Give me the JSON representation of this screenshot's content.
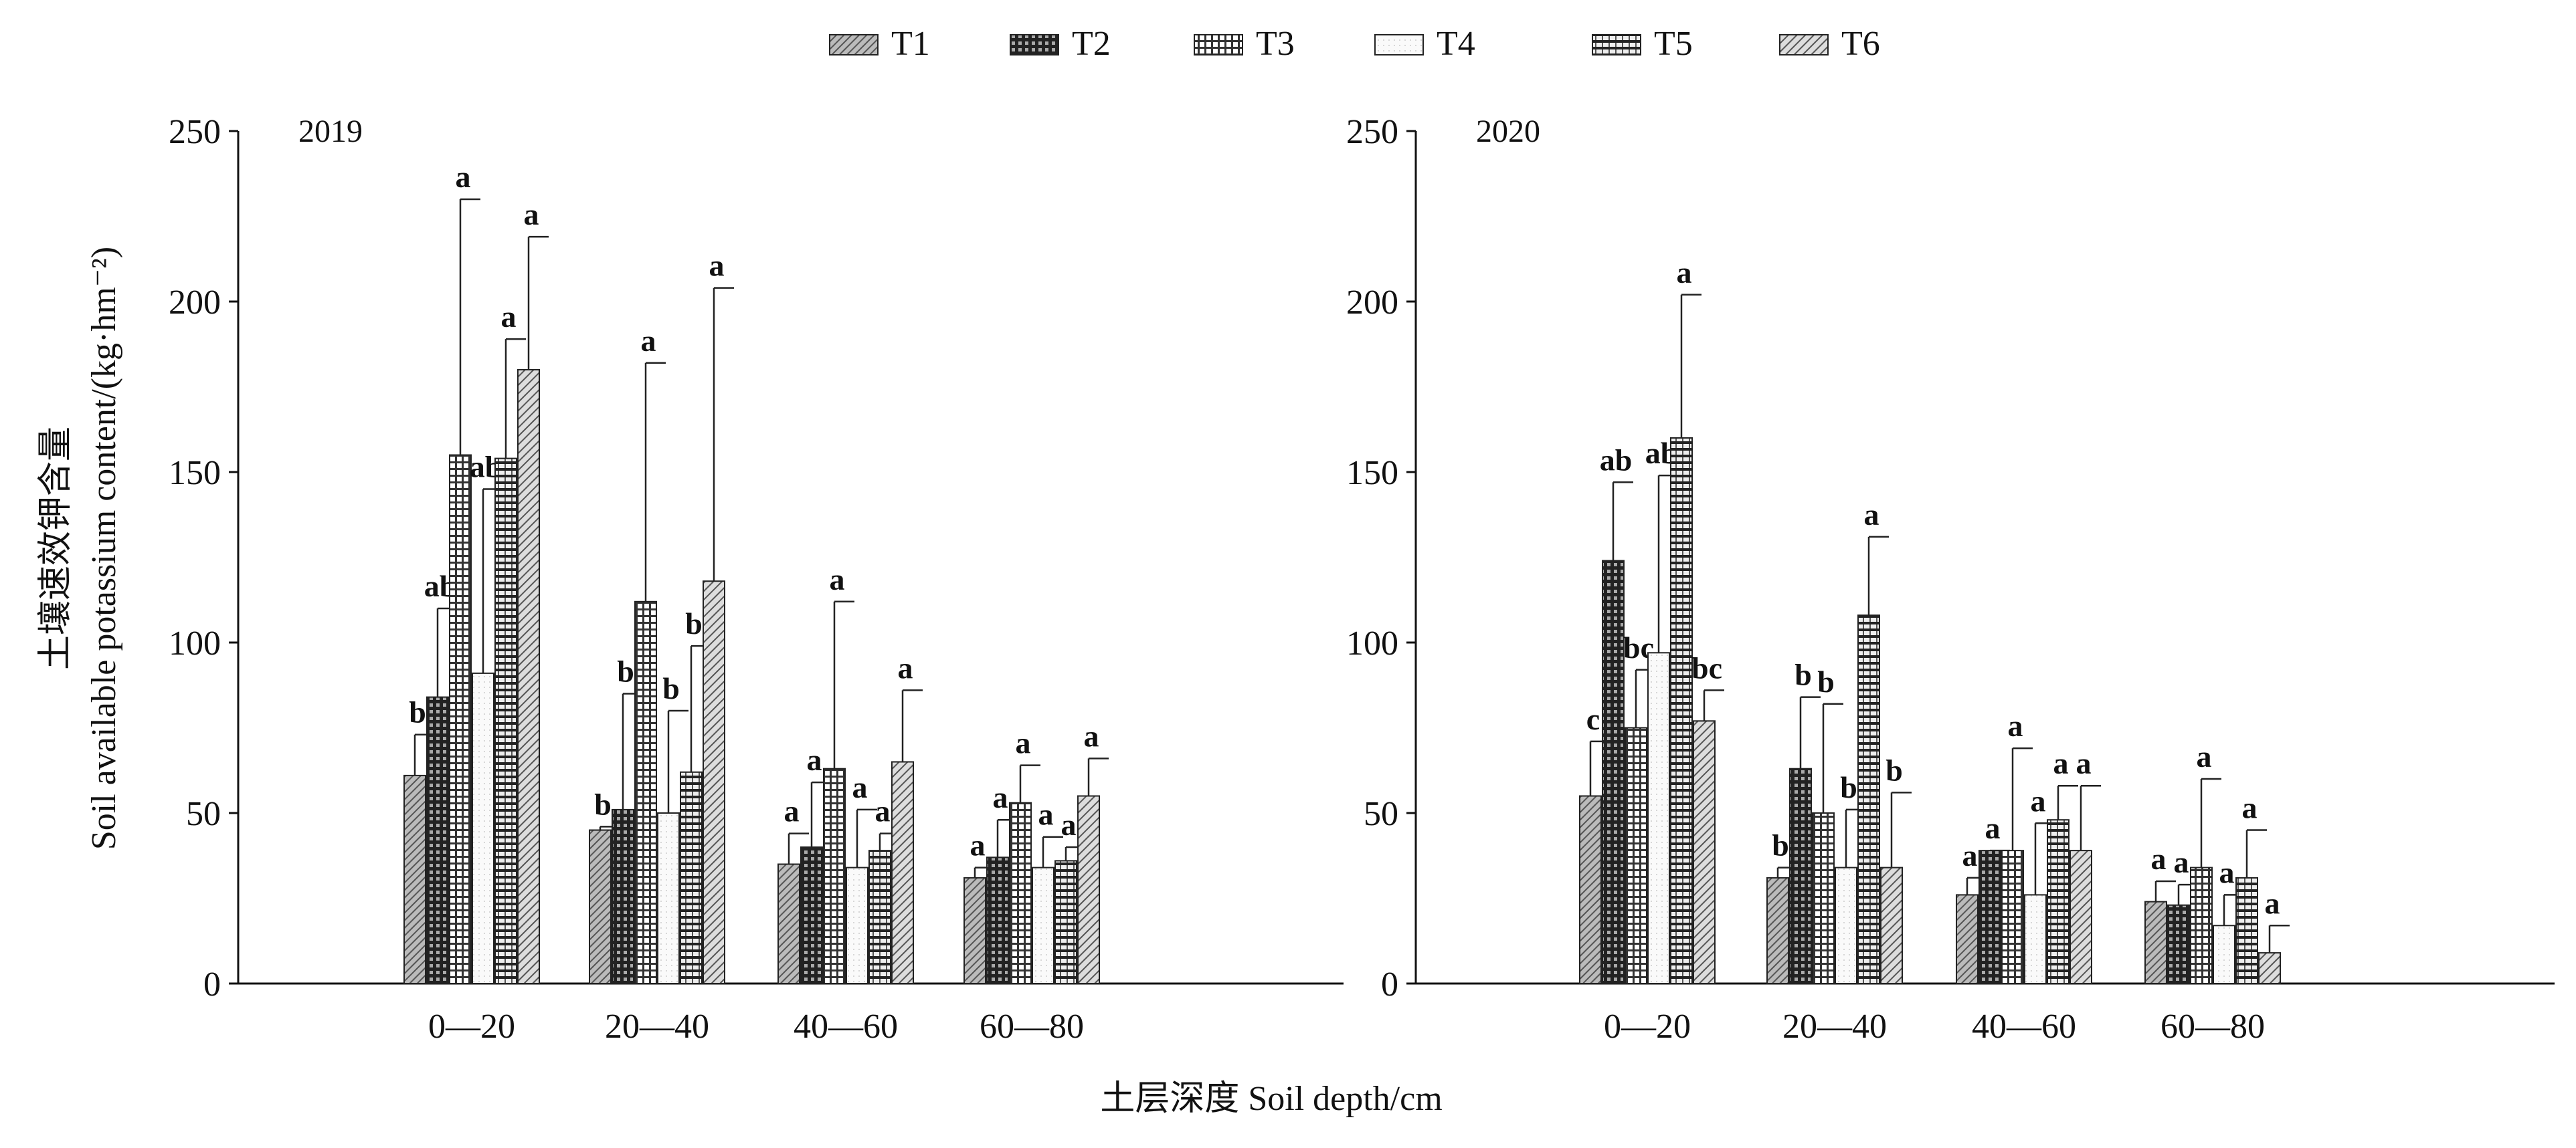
{
  "chart_data": {
    "type": "bar",
    "title": "",
    "xlabel": "土层深度 Soil depth/cm",
    "ylabel_cn": "土壤速效钾含量",
    "ylabel": "Soil available potassium content/(kg·hm⁻²)",
    "ylim": [
      0,
      250
    ],
    "yticks": [
      "0",
      "50",
      "100",
      "150",
      "200",
      "250"
    ],
    "categories": [
      "0—20",
      "20—40",
      "40—60",
      "60—80"
    ],
    "legend": {
      "placement": "top-center",
      "entries": [
        "T1",
        "T2",
        "T3",
        "T4",
        "T5",
        "T6"
      ]
    },
    "panels": [
      {
        "label": "2019",
        "series": [
          {
            "name": "T1",
            "values": [
              61,
              45,
              35,
              31
            ],
            "upper": [
              73,
              46,
              44,
              34
            ],
            "letters": [
              "b",
              "b",
              "a",
              "a"
            ]
          },
          {
            "name": "T2",
            "values": [
              84,
              51,
              40,
              37
            ],
            "upper": [
              110,
              85,
              59,
              48
            ],
            "letters": [
              "ab",
              "b",
              "a",
              "a"
            ]
          },
          {
            "name": "T3",
            "values": [
              155,
              112,
              63,
              53
            ],
            "upper": [
              230,
              182,
              112,
              64
            ],
            "letters": [
              "a",
              "a",
              "a",
              "a"
            ]
          },
          {
            "name": "T4",
            "values": [
              91,
              50,
              34,
              34
            ],
            "upper": [
              145,
              80,
              51,
              43
            ],
            "letters": [
              "ab",
              "b",
              "a",
              "a"
            ]
          },
          {
            "name": "T5",
            "values": [
              154,
              62,
              39,
              36
            ],
            "upper": [
              189,
              99,
              44,
              40
            ],
            "letters": [
              "a",
              "b",
              "a",
              "a"
            ]
          },
          {
            "name": "T6",
            "values": [
              180,
              118,
              65,
              55
            ],
            "upper": [
              219,
              204,
              86,
              66
            ],
            "letters": [
              "a",
              "a",
              "a",
              "a"
            ]
          }
        ]
      },
      {
        "label": "2020",
        "series": [
          {
            "name": "T1",
            "values": [
              55,
              31,
              26,
              24
            ],
            "upper": [
              71,
              34,
              31,
              30
            ],
            "letters": [
              "c",
              "b",
              "a",
              "a"
            ]
          },
          {
            "name": "T2",
            "values": [
              124,
              63,
              39,
              23
            ],
            "upper": [
              147,
              84,
              39,
              29
            ],
            "letters": [
              "ab",
              "b",
              "a",
              "a"
            ]
          },
          {
            "name": "T3",
            "values": [
              75,
              50,
              39,
              34
            ],
            "upper": [
              92,
              82,
              69,
              60
            ],
            "letters": [
              "bc",
              "b",
              "a",
              "a"
            ]
          },
          {
            "name": "T4",
            "values": [
              97,
              34,
              26,
              17
            ],
            "upper": [
              149,
              51,
              47,
              26
            ],
            "letters": [
              "ab",
              "b",
              "a",
              "a"
            ]
          },
          {
            "name": "T5",
            "values": [
              160,
              108,
              48,
              31
            ],
            "upper": [
              202,
              131,
              58,
              45
            ],
            "letters": [
              "a",
              "a",
              "a",
              "a"
            ]
          },
          {
            "name": "T6",
            "values": [
              77,
              34,
              39,
              9
            ],
            "upper": [
              86,
              56,
              58,
              17
            ],
            "letters": [
              "bc",
              "b",
              "a",
              "a"
            ]
          }
        ]
      }
    ]
  }
}
